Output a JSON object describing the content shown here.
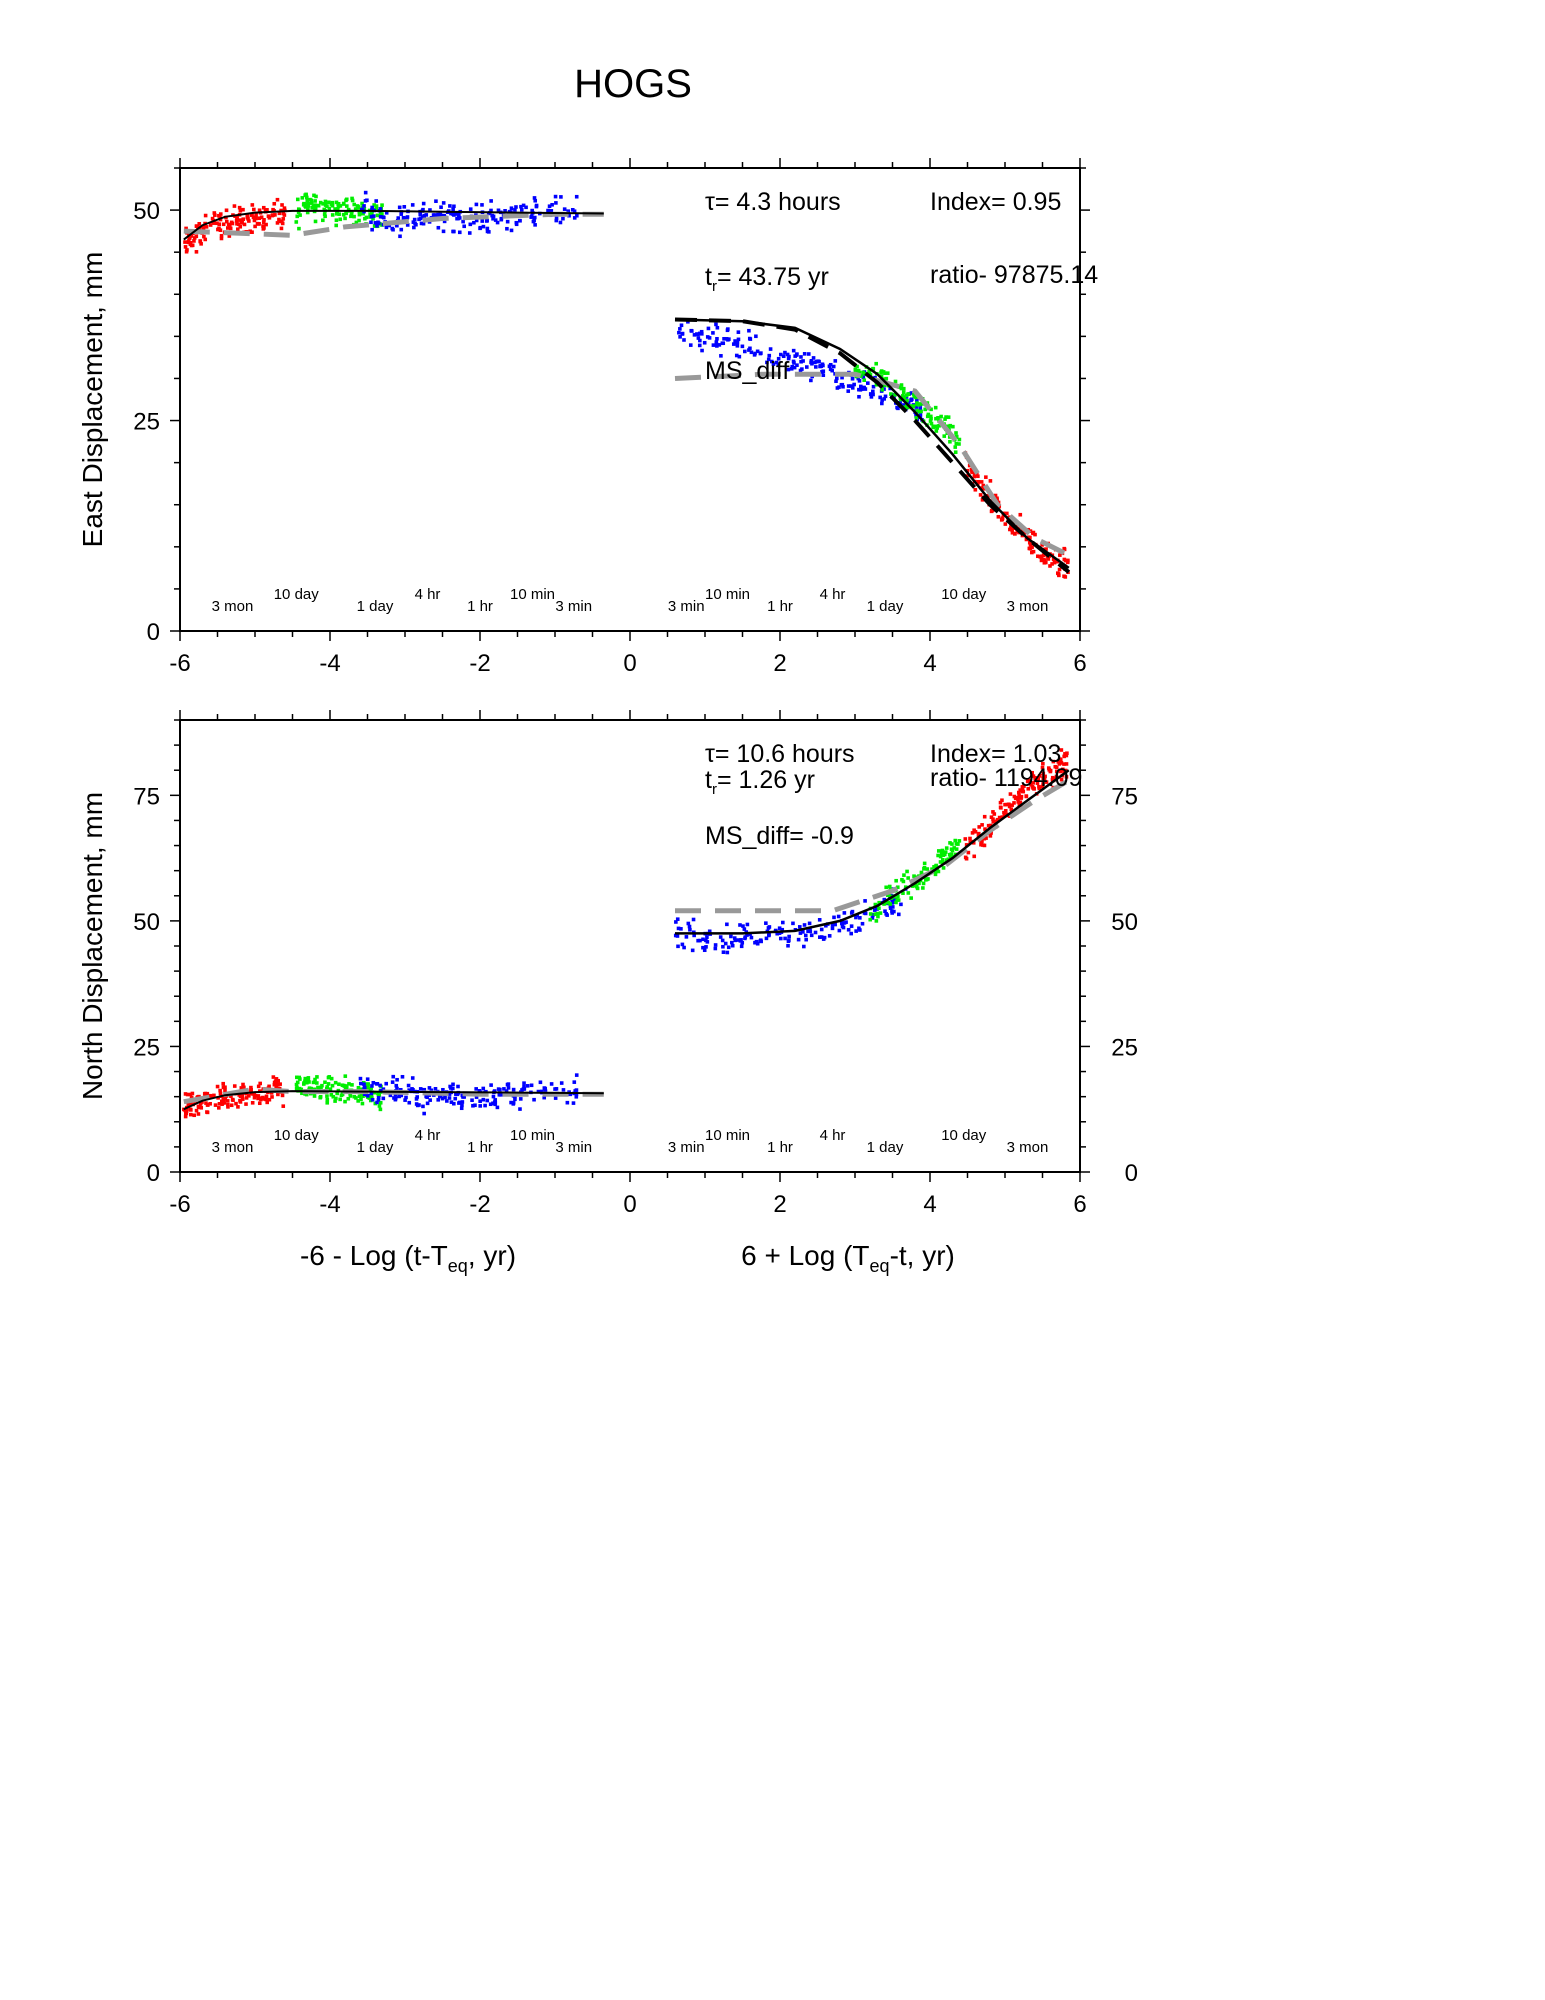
{
  "title": "HOGS",
  "chart_data": [
    {
      "type": "scatter",
      "panel": "east",
      "ylabel": "East Displacement, mm",
      "ylim": [
        0,
        55
      ],
      "xlim": [
        -6,
        6
      ],
      "x_ticks": [
        "-6",
        "-4",
        "-2",
        "0",
        "2",
        "4",
        "6"
      ],
      "y_ticks_left": [
        {
          "value": 0,
          "label": "0"
        },
        {
          "value": 25,
          "label": "25"
        },
        {
          "value": 50,
          "label": "50"
        }
      ],
      "y_ticks_right": [],
      "annotations": {
        "tau": "τ= 4.3 hours",
        "index": "Index= 0.95",
        "tr_main": "t",
        "tr_sub": "r",
        "tr_rest": "= 43.75 yr",
        "ratio": "ratio- 97875.14",
        "ms_diff": "MS_diff"
      },
      "time_markers_before": [
        {
          "x": -5.3,
          "label": "3 mon"
        },
        {
          "x": -4.45,
          "label": "10 day"
        },
        {
          "x": -3.4,
          "label": "1 day"
        },
        {
          "x": -2.7,
          "label": "4 hr"
        },
        {
          "x": -2.0,
          "label": "1 hr"
        },
        {
          "x": -1.3,
          "label": "10 min"
        },
        {
          "x": -0.75,
          "label": "3 min"
        }
      ],
      "time_markers_after": [
        {
          "x": 0.75,
          "label": "3 min"
        },
        {
          "x": 1.3,
          "label": "10 min"
        },
        {
          "x": 2.0,
          "label": "1 hr"
        },
        {
          "x": 2.7,
          "label": "4 hr"
        },
        {
          "x": 3.4,
          "label": "1 day"
        },
        {
          "x": 4.45,
          "label": "10 day"
        },
        {
          "x": 5.3,
          "label": "3 mon"
        }
      ],
      "series": [
        {
          "color": "#ff0000",
          "points": [
            [
              -5.95,
              46.0
            ],
            [
              -5.8,
              46.8
            ],
            [
              -5.6,
              47.8
            ],
            [
              -5.4,
              48.5
            ],
            [
              -5.2,
              48.9
            ],
            [
              -5.0,
              49.1
            ],
            [
              -4.8,
              49.2
            ],
            [
              -4.6,
              49.3
            ]
          ]
        },
        {
          "color": "#00ee00",
          "points": [
            [
              -4.45,
              49.4
            ],
            [
              -4.3,
              51.0
            ],
            [
              -4.1,
              50.5
            ],
            [
              -3.9,
              50.0
            ],
            [
              -3.7,
              49.8
            ],
            [
              -3.5,
              49.6
            ],
            [
              -3.3,
              49.3
            ]
          ]
        },
        {
          "color": "#0000ff",
          "points": [
            [
              -3.6,
              50.5
            ],
            [
              -3.3,
              49.2
            ],
            [
              -3.0,
              48.8
            ],
            [
              -2.7,
              49.5
            ],
            [
              -2.4,
              49.3
            ],
            [
              -2.1,
              49.0
            ],
            [
              -1.8,
              49.2
            ],
            [
              -1.5,
              49.4
            ],
            [
              -1.1,
              49.6
            ],
            [
              -0.7,
              50.2
            ]
          ]
        },
        {
          "color": "#0000ff",
          "points": [
            [
              0.6,
              36.0
            ],
            [
              1.0,
              35.0
            ],
            [
              1.4,
              34.0
            ],
            [
              1.8,
              33.0
            ],
            [
              2.2,
              32.0
            ],
            [
              2.5,
              31.0
            ],
            [
              2.8,
              30.0
            ],
            [
              3.1,
              29.0
            ],
            [
              3.4,
              28.0
            ],
            [
              3.7,
              27.0
            ],
            [
              3.9,
              25.5
            ]
          ]
        },
        {
          "color": "#00ee00",
          "points": [
            [
              3.0,
              31.5
            ],
            [
              3.3,
              30.0
            ],
            [
              3.6,
              28.5
            ],
            [
              3.8,
              27.0
            ],
            [
              4.0,
              25.5
            ],
            [
              4.2,
              24.0
            ],
            [
              4.4,
              22.5
            ]
          ]
        },
        {
          "color": "#ff0000",
          "points": [
            [
              4.45,
              20.0
            ],
            [
              4.7,
              17.0
            ],
            [
              4.9,
              14.5
            ],
            [
              5.1,
              12.5
            ],
            [
              5.3,
              11.0
            ],
            [
              5.5,
              9.5
            ],
            [
              5.7,
              8.5
            ],
            [
              5.85,
              7.5
            ]
          ]
        }
      ],
      "fit_solid": [
        [
          -5.95,
          46.5
        ],
        [
          -5.7,
          48.2
        ],
        [
          -5.4,
          49.2
        ],
        [
          -5.0,
          49.7
        ],
        [
          -4.5,
          49.9
        ],
        [
          -3.5,
          49.9
        ],
        [
          -2.5,
          49.8
        ],
        [
          -1.5,
          49.7
        ],
        [
          -0.35,
          49.6
        ]
      ],
      "fit_dashed_black": [
        [
          0.6,
          37.0
        ],
        [
          1.5,
          36.8
        ],
        [
          2.2,
          35.8
        ],
        [
          2.8,
          33.0
        ],
        [
          3.3,
          29.5
        ],
        [
          3.8,
          25.0
        ],
        [
          4.3,
          20.0
        ],
        [
          4.8,
          15.0
        ],
        [
          5.3,
          11.0
        ],
        [
          5.85,
          7.0
        ]
      ],
      "fit_dashed_gray": [
        [
          -5.95,
          47.5
        ],
        [
          -4.5,
          47.0
        ],
        [
          -3.8,
          48.0
        ],
        [
          -2.5,
          49.0
        ],
        [
          -1.0,
          49.5
        ],
        [
          -0.35,
          49.5
        ]
      ],
      "fit_dashed_gray_after": [
        [
          0.6,
          30.0
        ],
        [
          1.8,
          30.5
        ],
        [
          3.0,
          30.5
        ],
        [
          3.8,
          28.5
        ],
        [
          4.4,
          22.0
        ],
        [
          4.9,
          15.0
        ],
        [
          5.4,
          11.0
        ],
        [
          5.85,
          9.0
        ]
      ],
      "fit_solid_after": [
        [
          0.6,
          37.0
        ],
        [
          1.5,
          36.8
        ],
        [
          2.2,
          36.0
        ],
        [
          2.8,
          33.5
        ],
        [
          3.3,
          30.5
        ],
        [
          3.8,
          26.0
        ],
        [
          4.3,
          21.0
        ],
        [
          4.8,
          15.5
        ],
        [
          5.3,
          11.0
        ],
        [
          5.85,
          7.5
        ]
      ]
    },
    {
      "type": "scatter",
      "panel": "north",
      "ylabel": "North Displacement, mm",
      "xlabel_left": "-6 - Log (t-T",
      "xlabel_left_sub": "eq",
      "xlabel_left_rest": ", yr)",
      "xlabel_right": "6 + Log (T",
      "xlabel_right_sub": "eq",
      "xlabel_right_rest": "-t, yr)",
      "ylim": [
        0,
        90
      ],
      "xlim": [
        -6,
        6
      ],
      "x_ticks": [
        "-6",
        "-4",
        "-2",
        "0",
        "2",
        "4",
        "6"
      ],
      "y_ticks_left": [
        {
          "value": 0,
          "label": "0"
        },
        {
          "value": 25,
          "label": "25"
        },
        {
          "value": 50,
          "label": "50"
        },
        {
          "value": 75,
          "label": "75"
        }
      ],
      "y_ticks_right": [
        {
          "value": 0,
          "label": "0"
        },
        {
          "value": 25,
          "label": "25"
        },
        {
          "value": 50,
          "label": "50"
        },
        {
          "value": 75,
          "label": "75"
        }
      ],
      "annotations": {
        "tau": "τ= 10.6 hours",
        "index": "Index= 1.03",
        "tr_main": "t",
        "tr_sub": "r",
        "tr_rest": "= 1.26 yr",
        "ratio": "ratio- 1194.09",
        "ms_diff": "MS_diff= -0.9"
      },
      "time_markers_before": [
        {
          "x": -5.3,
          "label": "3 mon"
        },
        {
          "x": -4.45,
          "label": "10 day"
        },
        {
          "x": -3.4,
          "label": "1 day"
        },
        {
          "x": -2.7,
          "label": "4 hr"
        },
        {
          "x": -2.0,
          "label": "1 hr"
        },
        {
          "x": -1.3,
          "label": "10 min"
        },
        {
          "x": -0.75,
          "label": "3 min"
        }
      ],
      "time_markers_after": [
        {
          "x": 0.75,
          "label": "3 min"
        },
        {
          "x": 1.3,
          "label": "10 min"
        },
        {
          "x": 2.0,
          "label": "1 hr"
        },
        {
          "x": 2.7,
          "label": "4 hr"
        },
        {
          "x": 3.4,
          "label": "1 day"
        },
        {
          "x": 4.45,
          "label": "10 day"
        },
        {
          "x": 5.3,
          "label": "3 mon"
        }
      ],
      "series": [
        {
          "color": "#ff0000",
          "points": [
            [
              -5.95,
              12.5
            ],
            [
              -5.8,
              13.5
            ],
            [
              -5.6,
              14.5
            ],
            [
              -5.4,
              15.2
            ],
            [
              -5.2,
              15.6
            ],
            [
              -5.0,
              15.8
            ],
            [
              -4.8,
              16.0
            ],
            [
              -4.6,
              16.0
            ]
          ]
        },
        {
          "color": "#00ee00",
          "points": [
            [
              -4.45,
              17.5
            ],
            [
              -4.3,
              17.0
            ],
            [
              -4.1,
              16.5
            ],
            [
              -3.9,
              16.2
            ],
            [
              -3.7,
              16.0
            ],
            [
              -3.5,
              15.8
            ],
            [
              -3.3,
              15.6
            ]
          ]
        },
        {
          "color": "#0000ff",
          "points": [
            [
              -3.6,
              17.0
            ],
            [
              -3.3,
              15.5
            ],
            [
              -3.0,
              16.0
            ],
            [
              -2.7,
              15.0
            ],
            [
              -2.4,
              15.5
            ],
            [
              -2.1,
              15.0
            ],
            [
              -1.8,
              15.2
            ],
            [
              -1.5,
              15.5
            ],
            [
              -1.1,
              15.8
            ],
            [
              -0.7,
              16.0
            ]
          ]
        },
        {
          "color": "#0000ff",
          "points": [
            [
              0.6,
              48.0
            ],
            [
              1.0,
              46.5
            ],
            [
              1.4,
              46.0
            ],
            [
              1.8,
              47.0
            ],
            [
              2.2,
              47.5
            ],
            [
              2.6,
              48.5
            ],
            [
              3.0,
              50.0
            ],
            [
              3.4,
              53.0
            ],
            [
              3.7,
              56.0
            ]
          ]
        },
        {
          "color": "#00ee00",
          "points": [
            [
              3.2,
              52.0
            ],
            [
              3.5,
              55.0
            ],
            [
              3.8,
              58.0
            ],
            [
              4.0,
              60.5
            ],
            [
              4.2,
              63.0
            ],
            [
              4.4,
              65.0
            ]
          ]
        },
        {
          "color": "#ff0000",
          "points": [
            [
              4.45,
              64.0
            ],
            [
              4.7,
              67.5
            ],
            [
              4.9,
              70.5
            ],
            [
              5.1,
              73.5
            ],
            [
              5.3,
              76.0
            ],
            [
              5.5,
              78.0
            ],
            [
              5.7,
              80.0
            ],
            [
              5.85,
              81.5
            ]
          ]
        }
      ],
      "fit_solid": [
        [
          -5.95,
          12.5
        ],
        [
          -5.7,
          14.2
        ],
        [
          -5.4,
          15.3
        ],
        [
          -5.0,
          15.9
        ],
        [
          -4.5,
          16.1
        ],
        [
          -3.5,
          16.0
        ],
        [
          -2.5,
          15.9
        ],
        [
          -1.5,
          15.8
        ],
        [
          -0.35,
          15.7
        ]
      ],
      "fit_dashed_black": [],
      "fit_dashed_gray": [
        [
          -5.95,
          14.0
        ],
        [
          -5.0,
          16.5
        ],
        [
          -4.5,
          16.0
        ],
        [
          -3.5,
          16.0
        ],
        [
          -2.0,
          15.5
        ],
        [
          -0.35,
          15.5
        ]
      ],
      "fit_dashed_gray_after": [
        [
          0.6,
          52.0
        ],
        [
          1.8,
          52.0
        ],
        [
          2.7,
          52.0
        ],
        [
          3.5,
          56.0
        ],
        [
          4.2,
          61.0
        ],
        [
          4.8,
          68.0
        ],
        [
          5.4,
          74.0
        ],
        [
          5.85,
          78.0
        ]
      ],
      "fit_solid_after": [
        [
          0.6,
          47.5
        ],
        [
          1.5,
          47.5
        ],
        [
          2.2,
          48.0
        ],
        [
          2.8,
          50.0
        ],
        [
          3.3,
          53.0
        ],
        [
          3.8,
          57.5
        ],
        [
          4.3,
          62.5
        ],
        [
          4.8,
          68.5
        ],
        [
          5.3,
          74.0
        ],
        [
          5.85,
          80.0
        ]
      ]
    }
  ]
}
